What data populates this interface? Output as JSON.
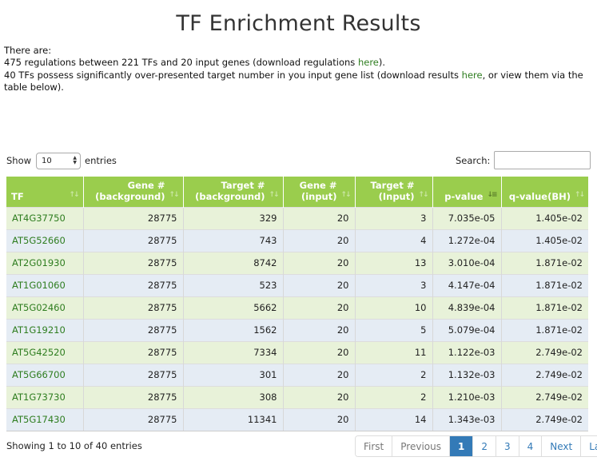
{
  "page": {
    "title": "TF Enrichment Results"
  },
  "summary": {
    "line1": "There are:",
    "line2_prefix": "475 regulations between 221 TFs and 20 input genes (download regulations ",
    "line2_link": "here",
    "line2_suffix": ").",
    "line3_prefix": "40 TFs possess significantly over-presented target number in you input gene list (download results ",
    "line3_link": "here",
    "line3_suffix": ", or view them via the table below)."
  },
  "controls": {
    "show_label": "Show",
    "entries_label": "entries",
    "length_value": "10",
    "search_label": "Search:",
    "search_value": ""
  },
  "table": {
    "headers": [
      {
        "l1": "TF",
        "l2": ""
      },
      {
        "l1": "Gene #",
        "l2": "(background)"
      },
      {
        "l1": "Target #",
        "l2": "(background)"
      },
      {
        "l1": "Gene #",
        "l2": "(input)"
      },
      {
        "l1": "Target #",
        "l2": "(Input)"
      },
      {
        "l1": "p-value",
        "l2": ""
      },
      {
        "l1": "q-value(BH)",
        "l2": ""
      }
    ],
    "sort_icons": {
      "unsorted": "↑↓",
      "sorted_asc": "↓≡"
    },
    "rows": [
      [
        "AT4G37750",
        "28775",
        "329",
        "20",
        "3",
        "7.035e-05",
        "1.405e-02"
      ],
      [
        "AT5G52660",
        "28775",
        "743",
        "20",
        "4",
        "1.272e-04",
        "1.405e-02"
      ],
      [
        "AT2G01930",
        "28775",
        "8742",
        "20",
        "13",
        "3.010e-04",
        "1.871e-02"
      ],
      [
        "AT1G01060",
        "28775",
        "523",
        "20",
        "3",
        "4.147e-04",
        "1.871e-02"
      ],
      [
        "AT5G02460",
        "28775",
        "5662",
        "20",
        "10",
        "4.839e-04",
        "1.871e-02"
      ],
      [
        "AT1G19210",
        "28775",
        "1562",
        "20",
        "5",
        "5.079e-04",
        "1.871e-02"
      ],
      [
        "AT5G42520",
        "28775",
        "7334",
        "20",
        "11",
        "1.122e-03",
        "2.749e-02"
      ],
      [
        "AT5G66700",
        "28775",
        "301",
        "20",
        "2",
        "1.132e-03",
        "2.749e-02"
      ],
      [
        "AT1G73730",
        "28775",
        "308",
        "20",
        "2",
        "1.210e-03",
        "2.749e-02"
      ],
      [
        "AT5G17430",
        "28775",
        "11341",
        "20",
        "14",
        "1.343e-03",
        "2.749e-02"
      ]
    ]
  },
  "footer": {
    "info": "Showing 1 to 10 of 40 entries",
    "pagination": {
      "first": "First",
      "previous": "Previous",
      "pages": [
        "1",
        "2",
        "3",
        "4"
      ],
      "active_page": "1",
      "next": "Next",
      "last": "Last"
    }
  },
  "colors": {
    "header_bg": "#9acd4d",
    "row_odd": "#e8f2d9",
    "row_even": "#e5ecf4",
    "link": "#2e7d1f",
    "pager_active": "#337ab7"
  }
}
